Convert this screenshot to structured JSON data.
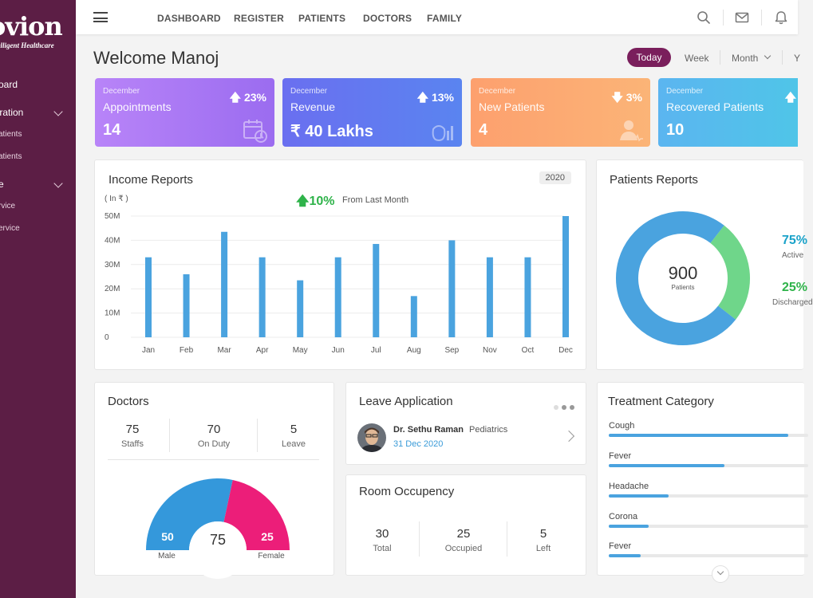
{
  "sidebar": {
    "logo": "ovion",
    "tagline": "telligent Healthcare",
    "items": [
      {
        "label": "oard"
      },
      {
        "label": "tration"
      },
      {
        "label": "atients"
      },
      {
        "label": "atients"
      },
      {
        "label": "e"
      },
      {
        "label": "rvice"
      },
      {
        "label": "ervice"
      }
    ]
  },
  "nav": {
    "items": [
      "DASHBOARD",
      "REGISTER",
      "PATIENTS",
      "DOCTORS",
      "FAMILY"
    ]
  },
  "header": {
    "welcome": "Welcome Manoj",
    "today": "Today",
    "week": "Week",
    "month": "Month",
    "year": "Y"
  },
  "stats": [
    {
      "month": "December",
      "label": "Appointments",
      "value": "14",
      "pct": "23%",
      "dir": "up",
      "icon": "calendar-clock-icon",
      "gradient": [
        "#b884f8",
        "#9b6cf0"
      ]
    },
    {
      "month": "December",
      "label": "Revenue",
      "value": "₹ 40 Lakhs",
      "pct": "13%",
      "dir": "up",
      "icon": "money-chart-icon",
      "gradient": [
        "#6a6ff0",
        "#5a84f0"
      ]
    },
    {
      "month": "December",
      "label": "New Patients",
      "value": "4",
      "pct": "3%",
      "dir": "down",
      "icon": "patient-icon",
      "gradient": [
        "#fda06e",
        "#fbb477"
      ]
    },
    {
      "month": "December",
      "label": "Recovered Patients",
      "value": "10",
      "pct": "",
      "dir": "",
      "icon": "",
      "gradient": [
        "#5bb5f0",
        "#4fc5e8"
      ]
    }
  ],
  "income": {
    "title": "Income Reports",
    "year": "2020",
    "unit": "( In ₹ )",
    "change": "10%",
    "change_note": "From Last Month"
  },
  "chart_data": {
    "type": "bar",
    "title": "Income Reports",
    "ylabel": "( In ₹ )",
    "categories": [
      "Jan",
      "Feb",
      "Mar",
      "Apr",
      "May",
      "Jun",
      "Jul",
      "Aug",
      "Sep",
      "Nov",
      "Oct",
      "Dec"
    ],
    "values": [
      33,
      26,
      43.5,
      33,
      23.5,
      33,
      38.5,
      17,
      40,
      33,
      33,
      50
    ],
    "yticks": [
      "0",
      "10M",
      "20M",
      "30M",
      "40M",
      "50M"
    ],
    "ylim": [
      0,
      50
    ],
    "color": "#4aa3df",
    "grid": true
  },
  "patients": {
    "title": "Patients Reports",
    "total": "900",
    "total_label": "Patients",
    "active_pct": "75%",
    "active_label": "Active",
    "discharged_pct": "25%",
    "discharged_label": "Discharged",
    "active_value": 75,
    "discharged_value": 25,
    "active_color": "#4aa3df",
    "discharged_color": "#6fd68a"
  },
  "doctors": {
    "title": "Doctors",
    "stats": [
      {
        "value": "75",
        "label": "Staffs"
      },
      {
        "value": "70",
        "label": "On Duty"
      },
      {
        "value": "5",
        "label": "Leave"
      }
    ],
    "gauge": {
      "male": "50",
      "female": "25",
      "total": "75",
      "male_label": "Male",
      "female_label": "Female",
      "male_value": 50,
      "female_value": 25,
      "male_color": "#3498db",
      "female_color": "#ec1e79"
    }
  },
  "leave": {
    "title": "Leave Application",
    "name": "Dr. Sethu Raman",
    "dept": "Pediatrics",
    "date": "31 Dec 2020"
  },
  "room": {
    "title": "Room Occupency",
    "stats": [
      {
        "value": "30",
        "label": "Total"
      },
      {
        "value": "25",
        "label": "Occupied"
      },
      {
        "value": "5",
        "label": "Left"
      }
    ]
  },
  "treatment": {
    "title": "Treatment Category",
    "items": [
      {
        "label": "Cough",
        "value": 0.9
      },
      {
        "label": "Fever",
        "value": 0.58
      },
      {
        "label": "Headache",
        "value": 0.3
      },
      {
        "label": "Corona",
        "value": 0.2
      },
      {
        "label": "Fever",
        "value": 0.16
      }
    ]
  }
}
